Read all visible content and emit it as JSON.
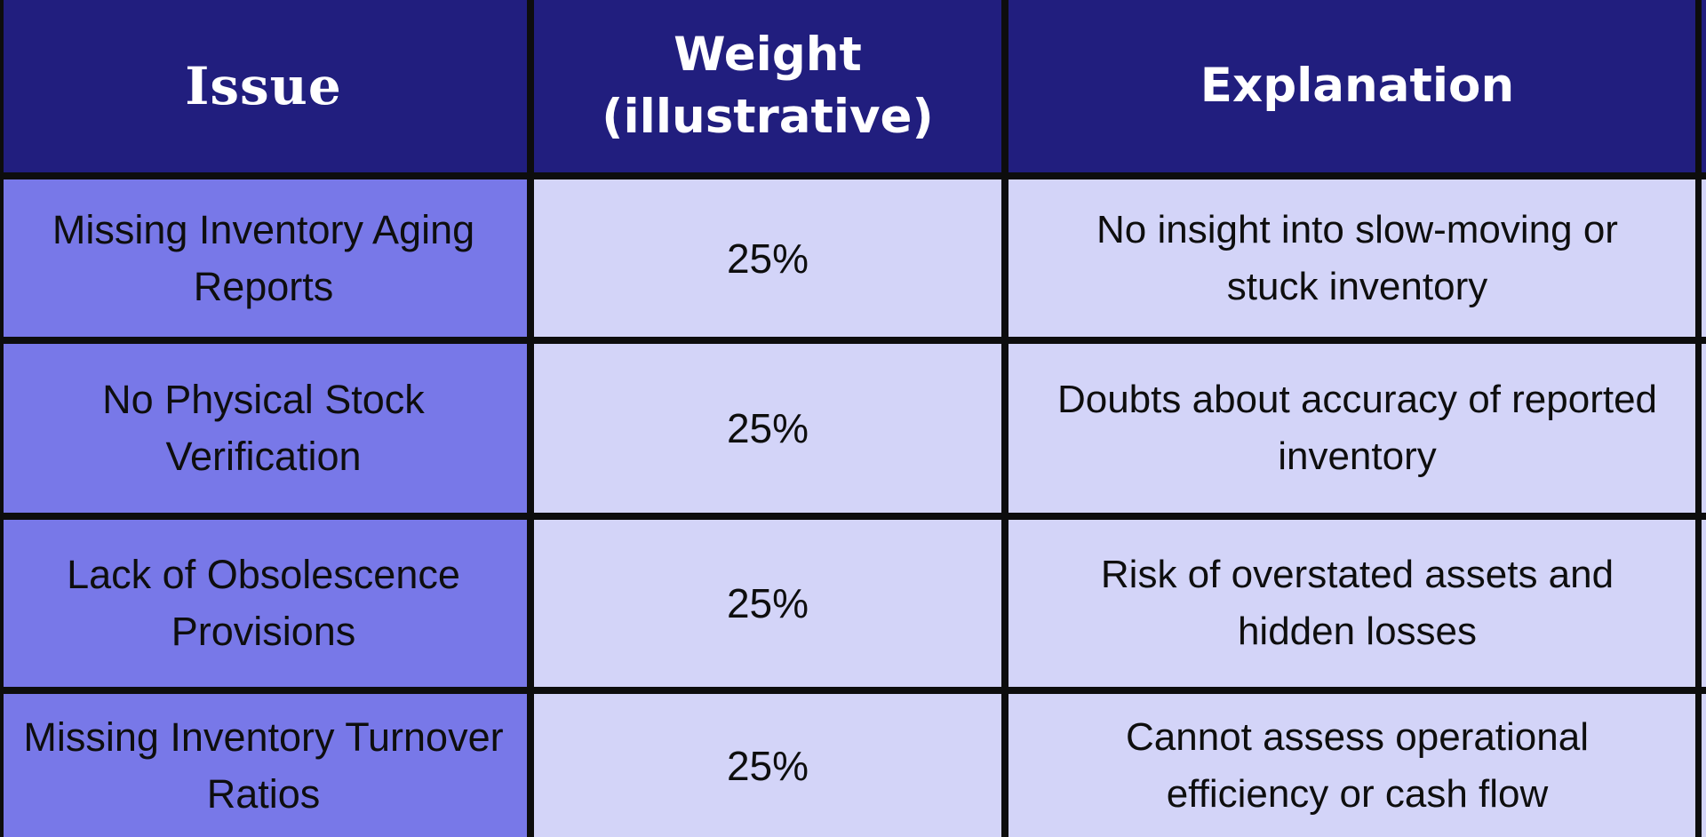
{
  "chart_data": {
    "type": "table",
    "columns": [
      "Issue",
      "Weight (illustrative)",
      "Explanation"
    ],
    "rows": [
      [
        "Missing Inventory Aging Reports",
        "25%",
        "No insight into slow-moving or stuck inventory"
      ],
      [
        "No Physical Stock Verification",
        "25%",
        "Doubts about accuracy of reported inventory"
      ],
      [
        "Lack of Obsolescence Provisions",
        "25%",
        "Risk of overstated assets and hidden losses"
      ],
      [
        "Missing Inventory Turnover Ratios",
        "25%",
        "Cannot assess operational efficiency or cash flow"
      ]
    ],
    "layout": {
      "header_position": "top",
      "grid": "on",
      "row_4_cropped_at_bottom": true
    }
  },
  "colors": {
    "header_bg": "#211e7e",
    "header_text": "#ffffff",
    "issue_column_bg": "#7878e8",
    "data_cell_bg": "#d3d4f8",
    "body_text": "#0e0e0e",
    "border": "#0d0d0d"
  }
}
